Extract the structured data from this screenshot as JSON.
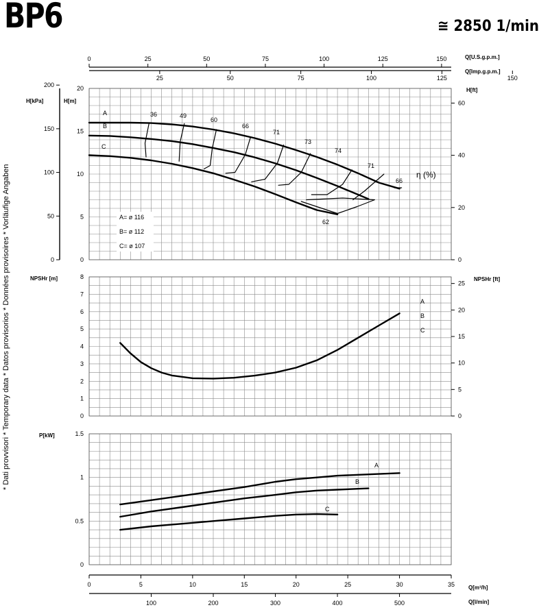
{
  "header": {
    "title": "BP6",
    "speed": "≅ 2850 1/min"
  },
  "side_note": "* Dati provvisori * Temporary data * Datos provisorios * Données provisoires * Vorläufige Angaben",
  "chart_data": [
    {
      "type": "line",
      "name": "head",
      "x_unit": "Q[m³/h]",
      "xlim": [
        0,
        35
      ],
      "ylim": [
        0,
        20
      ],
      "ylabel_left_kpa": "H[kPa]",
      "ylabel_left_m": "H[m]",
      "ylabel_right": "H[ft]",
      "ticks_kpa": [
        "0",
        "50",
        "100",
        "150",
        "200"
      ],
      "ticks_m": [
        "0",
        "5",
        "10",
        "15",
        "20"
      ],
      "ticks_ft": [
        "0",
        "20",
        "40",
        "60"
      ],
      "top_axis_usgpm": {
        "label": "Q[U.S.g.p.m.]",
        "ticks": [
          "0",
          "25",
          "50",
          "75",
          "100",
          "125",
          "150"
        ]
      },
      "top_axis_impgpm": {
        "label": "Q[Imp.g.p.m.]",
        "ticks": [
          "25",
          "50",
          "75",
          "100",
          "125",
          "150"
        ]
      },
      "series": [
        {
          "name": "A",
          "x": [
            0,
            2,
            4,
            6,
            8,
            10,
            12,
            14,
            16,
            18,
            20,
            22,
            24,
            26,
            28,
            30
          ],
          "y": [
            16,
            16,
            16,
            15.95,
            15.8,
            15.55,
            15.2,
            14.75,
            14.2,
            13.55,
            12.8,
            12,
            11.1,
            10.1,
            9.0,
            8.3
          ]
        },
        {
          "name": "B",
          "x": [
            0,
            2,
            4,
            6,
            8,
            10,
            12,
            14,
            16,
            18,
            20,
            22,
            24,
            26,
            27
          ],
          "y": [
            14.5,
            14.45,
            14.3,
            14.1,
            13.85,
            13.5,
            13.05,
            12.55,
            11.95,
            11.25,
            10.45,
            9.55,
            8.6,
            7.6,
            7.1
          ]
        },
        {
          "name": "C",
          "x": [
            0,
            2,
            4,
            6,
            8,
            10,
            12,
            14,
            16,
            18,
            20,
            22,
            24
          ],
          "y": [
            12.2,
            12.1,
            11.9,
            11.6,
            11.2,
            10.7,
            10.1,
            9.35,
            8.55,
            7.65,
            6.7,
            5.8,
            5.3
          ]
        }
      ],
      "efficiency_label": "η (%)",
      "efficiency_values": [
        "36",
        "49",
        "60",
        "66",
        "71",
        "73",
        "74",
        "71",
        "66",
        "62"
      ],
      "diameters": [
        "A= ø 116",
        "B= ø 112",
        "C= ø 107"
      ]
    },
    {
      "type": "line",
      "name": "npsh",
      "ylabel_left": "NPSHr [m]",
      "ylabel_right": "NPSHr [ft]",
      "ylim": [
        0,
        8
      ],
      "ticks_m": [
        "0",
        "1",
        "2",
        "3",
        "4",
        "5",
        "6",
        "7",
        "8"
      ],
      "ticks_ft": [
        "0",
        "5",
        "10",
        "15",
        "20",
        "25"
      ],
      "legend": [
        "A",
        "B",
        "C"
      ],
      "series": [
        {
          "name": "A B C",
          "x": [
            3,
            4,
            5,
            6,
            7,
            8,
            10,
            12,
            14,
            16,
            18,
            20,
            22,
            24,
            26,
            28,
            30
          ],
          "y": [
            4.2,
            3.6,
            3.1,
            2.75,
            2.5,
            2.33,
            2.17,
            2.15,
            2.2,
            2.32,
            2.5,
            2.78,
            3.2,
            3.8,
            4.5,
            5.2,
            5.9
          ]
        }
      ]
    },
    {
      "type": "line",
      "name": "power",
      "ylabel": "P[kW]",
      "ylim": [
        0,
        1.5
      ],
      "ticks": [
        "0",
        "0.5",
        "1",
        "1.5"
      ],
      "xlabel_m3h": "Q[m³/h]",
      "xticks_m3h": [
        "0",
        "5",
        "10",
        "15",
        "20",
        "25",
        "30",
        "35"
      ],
      "xlabel_lmin": "Q[l/min]",
      "xticks_lmin": [
        "100",
        "200",
        "300",
        "400",
        "500"
      ],
      "series": [
        {
          "name": "A",
          "x": [
            3,
            6,
            9,
            12,
            15,
            18,
            20,
            22,
            24,
            26,
            28,
            30
          ],
          "y": [
            0.69,
            0.74,
            0.79,
            0.84,
            0.89,
            0.95,
            0.98,
            1.0,
            1.02,
            1.03,
            1.04,
            1.05
          ]
        },
        {
          "name": "B",
          "x": [
            3,
            6,
            9,
            12,
            15,
            18,
            20,
            22,
            24,
            26,
            27
          ],
          "y": [
            0.55,
            0.61,
            0.66,
            0.71,
            0.76,
            0.8,
            0.83,
            0.85,
            0.86,
            0.87,
            0.875
          ]
        },
        {
          "name": "C",
          "x": [
            3,
            6,
            9,
            12,
            15,
            18,
            20,
            22,
            24
          ],
          "y": [
            0.4,
            0.44,
            0.47,
            0.5,
            0.53,
            0.56,
            0.575,
            0.58,
            0.575
          ]
        }
      ]
    }
  ]
}
